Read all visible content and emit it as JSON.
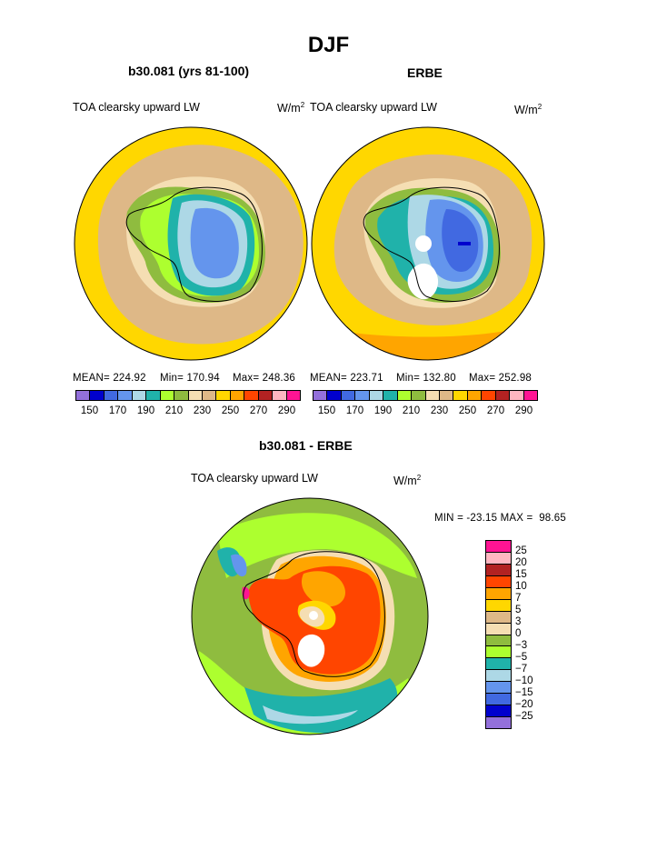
{
  "page": {
    "title": "DJF"
  },
  "left_panel": {
    "title": "b30.081 (yrs 81-100)",
    "field": "TOA clearsky upward LW",
    "units": "W/m",
    "units_exp": "2",
    "mean_label": "MEAN= 224.92",
    "min_label": "Min= 170.94",
    "max_label": "Max= 248.36"
  },
  "right_panel": {
    "title": "ERBE",
    "field": "TOA clearsky upward LW",
    "units": "W/m",
    "units_exp": "2",
    "mean_label": "MEAN= 223.71",
    "min_label": "Min= 132.80",
    "max_label": "Max= 252.98"
  },
  "diff_panel": {
    "title": "b30.081 - ERBE",
    "field": "TOA clearsky upward LW",
    "units": "W/m",
    "units_exp": "2",
    "minmax_label": "MIN = -23.15 MAX =  98.65"
  },
  "abs_colorbar": {
    "colors": [
      "#9370db",
      "#0000cd",
      "#4169e1",
      "#6495ed",
      "#add8e6",
      "#20b2aa",
      "#adff2f",
      "#8fbc3f",
      "#f5deb3",
      "#deb887",
      "#ffd700",
      "#ffa500",
      "#ff4500",
      "#b22222",
      "#ffb6c1",
      "#ff1493"
    ],
    "ticks": [
      "150",
      "170",
      "190",
      "210",
      "230",
      "250",
      "270",
      "290"
    ]
  },
  "diff_colorbar": {
    "colors": [
      "#ff1493",
      "#ffb6c1",
      "#b22222",
      "#ff4500",
      "#ffa500",
      "#ffd700",
      "#deb887",
      "#f5deb3",
      "#8fbc3f",
      "#adff2f",
      "#20b2aa",
      "#add8e6",
      "#6495ed",
      "#4169e1",
      "#0000cd",
      "#9370db"
    ],
    "ticks": [
      "25",
      "20",
      "15",
      "10",
      "7",
      "5",
      "3",
      "0",
      "−3",
      "−5",
      "−7",
      "−10",
      "−15",
      "−20",
      "−25"
    ]
  }
}
